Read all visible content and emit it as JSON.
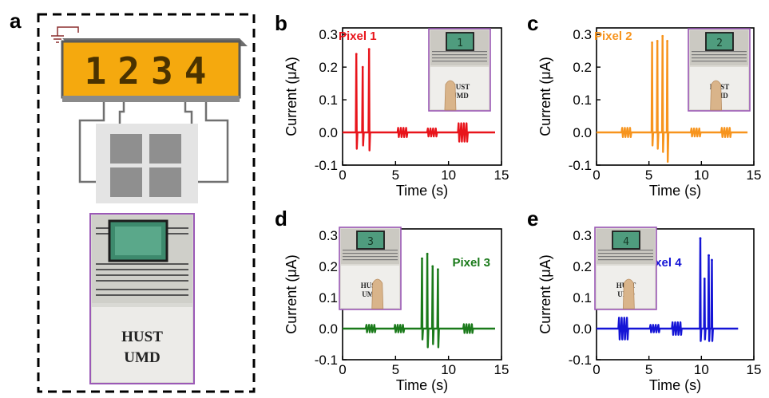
{
  "panel_labels": [
    "a",
    "b",
    "c",
    "d",
    "e"
  ],
  "schematic": {
    "display_digits": "1234",
    "photo_text_line1": "HUST",
    "photo_text_line2": "UMD",
    "colors": {
      "display": "#f5a90e",
      "frame": "#555555",
      "photo_border": "#9b59b6",
      "ground": "#8b2f2f"
    }
  },
  "chart_data": [
    {
      "type": "line",
      "panel": "b",
      "ylabel": "Current (μA)",
      "xlabel": "Time (s)",
      "xlim": [
        0,
        15
      ],
      "ylim": [
        -0.1,
        0.32
      ],
      "xticks": [
        "0",
        "5",
        "10",
        "15"
      ],
      "yticks": [
        "-0.1",
        "0.0",
        "0.1",
        "0.2",
        "0.3"
      ],
      "series": [
        {
          "name": "Pixel 1",
          "color": "#e8141b"
        }
      ],
      "peaks": [
        [
          1.3,
          0.24,
          -0.05
        ],
        [
          1.9,
          0.2,
          -0.04
        ],
        [
          2.5,
          0.255,
          -0.055
        ]
      ],
      "small_bursts": [
        [
          5.6,
          0.014
        ],
        [
          8.4,
          0.012
        ],
        [
          11.3,
          0.028
        ]
      ],
      "x_end": 14.4,
      "inset_digit": "1"
    },
    {
      "type": "line",
      "panel": "c",
      "ylabel": "Current (μA)",
      "xlabel": "Time (s)",
      "xlim": [
        0,
        15
      ],
      "ylim": [
        -0.1,
        0.32
      ],
      "xticks": [
        "0",
        "5",
        "10",
        "15"
      ],
      "yticks": [
        "-0.1",
        "0.0",
        "0.1",
        "0.2",
        "0.3"
      ],
      "series": [
        {
          "name": "Pixel 2",
          "color": "#f7941d"
        }
      ],
      "peaks": [
        [
          5.3,
          0.275,
          -0.04
        ],
        [
          5.8,
          0.28,
          -0.05
        ],
        [
          6.3,
          0.295,
          -0.06
        ],
        [
          6.75,
          0.28,
          -0.09
        ]
      ],
      "small_bursts": [
        [
          2.8,
          0.014
        ],
        [
          9.4,
          0.012
        ],
        [
          12.3,
          0.014
        ]
      ],
      "x_end": 14.4,
      "inset_digit": "2"
    },
    {
      "type": "line",
      "panel": "d",
      "ylabel": "Current (μA)",
      "xlabel": "Time (s)",
      "xlim": [
        0,
        15
      ],
      "ylim": [
        -0.1,
        0.32
      ],
      "xticks": [
        "0",
        "5",
        "10",
        "15"
      ],
      "yticks": [
        "-0.1",
        "0.0",
        "0.1",
        "0.2",
        "0.3"
      ],
      "series": [
        {
          "name": "Pixel 3",
          "color": "#1a7a1a"
        }
      ],
      "peaks": [
        [
          7.5,
          0.225,
          -0.035
        ],
        [
          8.0,
          0.24,
          -0.06
        ],
        [
          8.5,
          0.2,
          -0.05
        ],
        [
          9.0,
          0.19,
          -0.06
        ]
      ],
      "small_bursts": [
        [
          2.6,
          0.012
        ],
        [
          5.3,
          0.012
        ],
        [
          11.8,
          0.014
        ]
      ],
      "x_end": 14.4,
      "inset_digit": "3"
    },
    {
      "type": "line",
      "panel": "e",
      "ylabel": "Current (μA)",
      "xlabel": "Time (s)",
      "xlim": [
        0,
        15
      ],
      "ylim": [
        -0.1,
        0.32
      ],
      "xticks": [
        "0",
        "5",
        "10",
        "15"
      ],
      "yticks": [
        "-0.1",
        "0.0",
        "0.1",
        "0.2",
        "0.3"
      ],
      "series": [
        {
          "name": "Pixel 4",
          "color": "#1414d6"
        }
      ],
      "peaks": [
        [
          9.9,
          0.29,
          -0.04
        ],
        [
          10.3,
          0.16,
          -0.035
        ],
        [
          10.7,
          0.235,
          -0.04
        ],
        [
          11.0,
          0.22,
          -0.04
        ]
      ],
      "small_bursts": [
        [
          2.5,
          0.035
        ],
        [
          5.5,
          0.012
        ],
        [
          7.6,
          0.02
        ]
      ],
      "x_end": 13.5,
      "inset_digit": "4"
    }
  ]
}
